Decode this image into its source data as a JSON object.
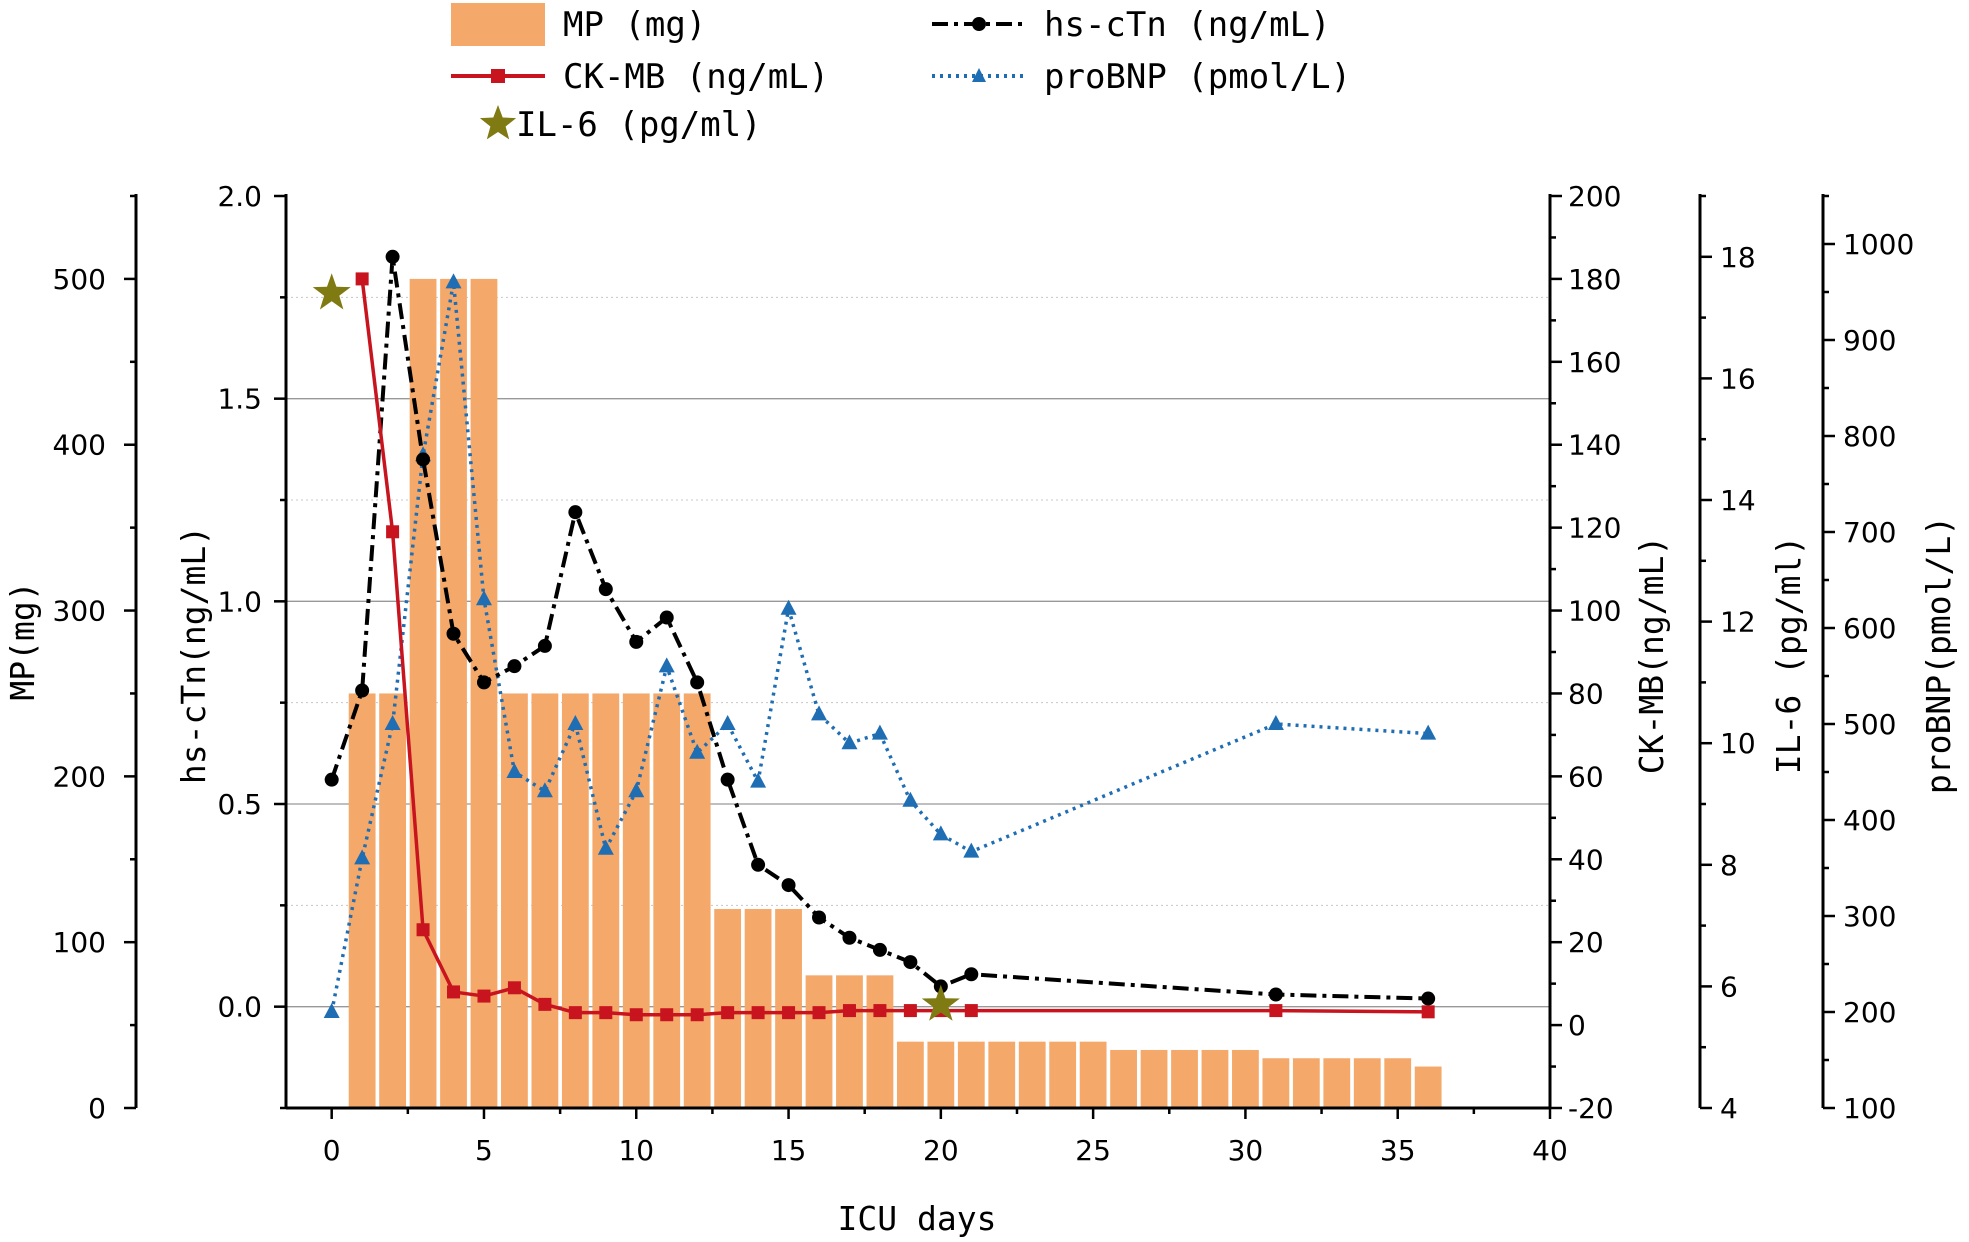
{
  "chart_data": {
    "type": "bar+line",
    "xlabel": "ICU days",
    "xlim": [
      -1.5,
      40
    ],
    "xticks": [
      0,
      5,
      10,
      15,
      20,
      25,
      30,
      35,
      40
    ],
    "axes": {
      "mp": {
        "label": "MP(mg)",
        "range": [
          0,
          550
        ],
        "ticks": [
          0,
          100,
          200,
          300,
          400,
          500
        ]
      },
      "hs_ctn": {
        "label": "hs-cTn(ng/mL)",
        "range": [
          -0.25,
          2.0
        ],
        "ticks": [
          0.0,
          0.5,
          1.0,
          1.5,
          2.0
        ]
      },
      "ck_mb": {
        "label": "CK-MB(ng/mL)",
        "range": [
          -20,
          200
        ],
        "ticks": [
          -20,
          0,
          20,
          40,
          60,
          80,
          100,
          120,
          140,
          160,
          180,
          200
        ]
      },
      "il6": {
        "label": "IL-6 (pg/ml)",
        "range": [
          4,
          19
        ],
        "ticks": [
          4,
          6,
          8,
          10,
          12,
          14,
          16,
          18
        ]
      },
      "probnp": {
        "label": "proBNP(pmol/L)",
        "range": [
          100,
          1050
        ],
        "ticks": [
          100,
          200,
          300,
          400,
          500,
          600,
          700,
          800,
          900,
          1000
        ]
      }
    },
    "legend": [
      {
        "key": "mp",
        "label": "MP (mg)"
      },
      {
        "key": "hs_ctn",
        "label": "hs-cTn (ng/mL)"
      },
      {
        "key": "ck_mb",
        "label": "CK-MB (ng/mL)"
      },
      {
        "key": "probnp",
        "label": "proBNP (pmol/L)"
      },
      {
        "key": "il6",
        "label": "IL-6 (pg/ml)"
      }
    ],
    "series": [
      {
        "name": "MP (mg)",
        "key": "mp",
        "type": "bar",
        "color": "#f4a96a",
        "x": [
          1,
          2,
          3,
          4,
          5,
          6,
          7,
          8,
          9,
          10,
          11,
          12,
          13,
          14,
          15,
          16,
          17,
          18,
          19,
          20,
          21,
          22,
          23,
          24,
          25,
          26,
          27,
          28,
          29,
          30,
          31,
          32,
          33,
          34,
          35,
          36
        ],
        "values": [
          250,
          250,
          500,
          500,
          500,
          250,
          250,
          250,
          250,
          250,
          250,
          250,
          120,
          120,
          120,
          80,
          80,
          80,
          40,
          40,
          40,
          40,
          40,
          40,
          40,
          35,
          35,
          35,
          35,
          35,
          30,
          30,
          30,
          30,
          30,
          25
        ]
      },
      {
        "name": "hs-cTn (ng/mL)",
        "key": "hs_ctn",
        "type": "line",
        "color": "#000000",
        "x": [
          0,
          1,
          2,
          3,
          4,
          5,
          6,
          7,
          8,
          9,
          10,
          11,
          12,
          13,
          14,
          15,
          16,
          17,
          18,
          19,
          20,
          21,
          31,
          36
        ],
        "values": [
          0.56,
          0.78,
          1.85,
          1.35,
          0.92,
          0.8,
          0.84,
          0.89,
          1.22,
          1.03,
          0.9,
          0.96,
          0.8,
          0.56,
          0.35,
          0.3,
          0.22,
          0.17,
          0.14,
          0.11,
          0.05,
          0.08,
          0.03,
          0.02
        ]
      },
      {
        "name": "CK-MB (ng/mL)",
        "key": "ck_mb",
        "type": "line",
        "color": "#c8141e",
        "x": [
          0,
          1,
          2,
          3,
          4,
          5,
          6,
          7,
          8,
          9,
          10,
          11,
          12,
          13,
          14,
          15,
          16,
          17,
          18,
          19,
          20,
          21,
          31,
          36
        ],
        "values": [
          null,
          180,
          119,
          23,
          8,
          7,
          9,
          5,
          3,
          3,
          2.5,
          2.5,
          2.5,
          3,
          3,
          3,
          3,
          3.5,
          3.5,
          3.5,
          3.5,
          3.5,
          3.5,
          3.2
        ]
      },
      {
        "name": "IL-6 (pg/ml)",
        "key": "il6",
        "type": "scatter",
        "color": "#7f7a12",
        "x": [
          0,
          20
        ],
        "values": [
          17.4,
          5.7
        ]
      },
      {
        "name": "proBNP (pmol/L)",
        "key": "probnp",
        "type": "line",
        "color": "#1f6db3",
        "x": [
          0,
          1,
          2,
          3,
          4,
          5,
          6,
          7,
          8,
          9,
          10,
          11,
          12,
          13,
          14,
          15,
          16,
          17,
          18,
          19,
          20,
          21,
          31,
          36
        ],
        "values": [
          200,
          360,
          500,
          780,
          960,
          630,
          450,
          430,
          500,
          370,
          430,
          560,
          470,
          500,
          440,
          620,
          510,
          480,
          490,
          420,
          385,
          367,
          500,
          490
        ]
      }
    ]
  }
}
